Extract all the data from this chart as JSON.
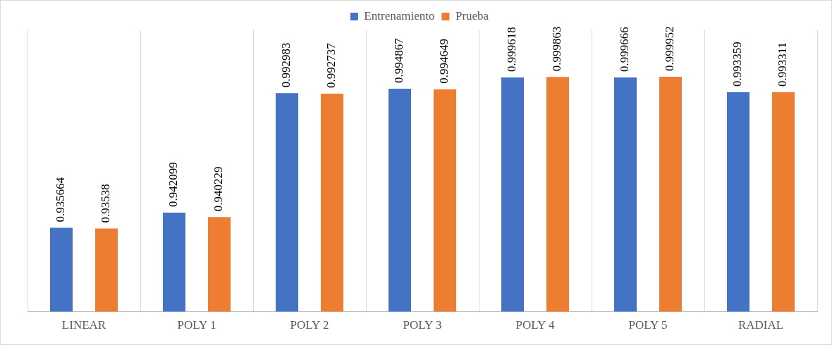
{
  "chart_data": {
    "type": "bar",
    "categories": [
      "LINEAR",
      "POLY 1",
      "POLY 2",
      "POLY 3",
      "POLY 4",
      "POLY 5",
      "RADIAL"
    ],
    "series": [
      {
        "name": "Entrenamiento",
        "color": "#4472c4",
        "values": [
          0.935664,
          0.942099,
          0.992983,
          0.994867,
          0.999618,
          0.999666,
          0.993359
        ]
      },
      {
        "name": "Prueba",
        "color": "#ed7d31",
        "values": [
          0.93538,
          0.940229,
          0.992737,
          0.994649,
          0.999863,
          0.999952,
          0.993311
        ]
      }
    ],
    "ylim": [
      0.9,
      1.02
    ],
    "data_labels": true,
    "grid": "x",
    "legend": "top",
    "tick_labels": "x"
  }
}
